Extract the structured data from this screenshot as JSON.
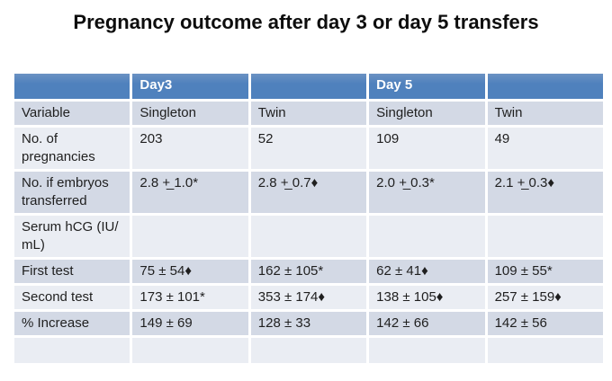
{
  "slide": {
    "title": "Pregnancy outcome after day 3 or day 5 transfers"
  },
  "table": {
    "header_groups": [
      "",
      "Day3",
      "",
      "Day 5",
      ""
    ],
    "columns": [
      "Variable",
      "Singleton",
      "Twin",
      "Singleton",
      "Twin"
    ],
    "rows": [
      {
        "label": "No. of pregnancies",
        "values": [
          "203",
          "52",
          "109",
          "49"
        ]
      },
      {
        "label": "No. if embryos transferred",
        "values": [
          "2.8 +̲ 1.0*",
          "2.8 +̲ 0.7♦",
          "2.0 +̲ 0.3*",
          "2.1 +̲ 0.3♦"
        ]
      },
      {
        "label": "Serum hCG (IU/​mL)",
        "values": [
          "",
          "",
          "",
          ""
        ]
      },
      {
        "label": "First test",
        "values": [
          "75 ± 54♦",
          "162 ± 105*",
          "62 ± 41♦",
          "109 ± 55*"
        ]
      },
      {
        "label": "Second test",
        "values": [
          "173 ± 101*",
          "353 ± 174♦",
          "138 ± 105♦",
          "257 ± 159♦"
        ]
      },
      {
        "label": "% Increase",
        "values": [
          "149 ± 69",
          "128 ± 33",
          "142 ± 66",
          "142 ± 56"
        ]
      },
      {
        "label": "",
        "values": [
          "",
          "",
          "",
          ""
        ]
      }
    ],
    "colors": {
      "header_bg": "#4f81bd",
      "header_text": "#ffffff",
      "band_dark": "#d3d9e5",
      "band_light": "#eaedf3",
      "border": "#ffffff",
      "text": "#1f1f1f"
    }
  }
}
